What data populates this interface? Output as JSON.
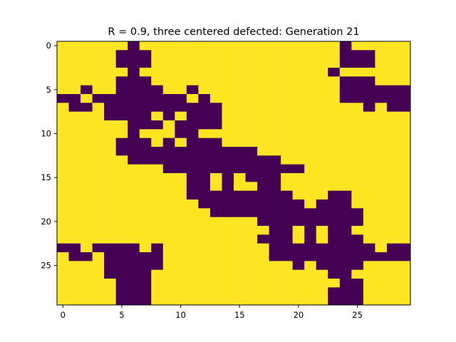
{
  "chart_data": {
    "type": "heatmap",
    "title": "R = 0.9, three centered defected: Generation 21",
    "colors": {
      "defector": "#440154",
      "cooperator": "#fde725"
    },
    "legend": "none",
    "grid": false,
    "x_ticks": [
      "0",
      "5",
      "10",
      "15",
      "20",
      "25"
    ],
    "y_ticks": [
      "0",
      "5",
      "10",
      "15",
      "20",
      "25"
    ],
    "x_tick_values": [
      0,
      5,
      10,
      15,
      20,
      25
    ],
    "y_tick_values": [
      0,
      5,
      10,
      15,
      20,
      25
    ],
    "xlim": [
      -0.5,
      29.5
    ],
    "ylim": [
      29.5,
      -0.5
    ],
    "rows": [
      "000000100000000000000000100000",
      "000001110000000000000000111000",
      "000001110000000000000000111000",
      "000000100000000000000001000000",
      "000001110000000000000000111000",
      "001001111001000000000000111111",
      "110111111110100000000000111111",
      "011011111111110000000000001011",
      "000011110101110000000000000000",
      "000000111011110000000000000000",
      "000000100011000000000000000000",
      "000001110101110000000000000000",
      "000001111111111110000000000000",
      "000000111111111111100000000000",
      "000000000111111111111000000000",
      "000000000001101011100000000000",
      "000000000001101001100000000000",
      "000000000001111111110001100000",
      "000000000000111111111011100000",
      "000000000000011111111111110000",
      "000000000000000001111111110000",
      "000000000000000000110101100000",
      "000000000000000001110101110000",
      "110111101000000000111111111011",
      "011011111000000000111111111111",
      "000011111000000000001011110000",
      "000011110000000000000001100000",
      "000001110000000000000000110000",
      "000001110000000000000001110000",
      "000001110000000000000001110000"
    ]
  }
}
